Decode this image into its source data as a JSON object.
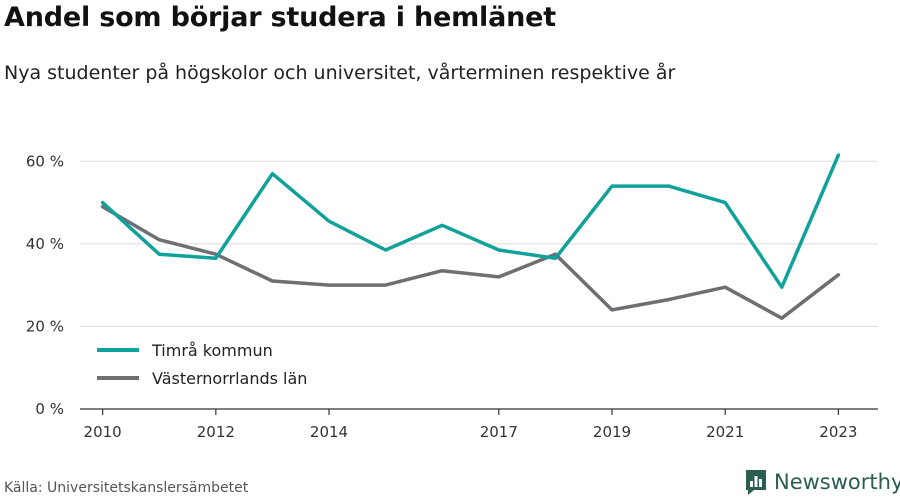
{
  "header": {
    "title": "Andel som börjar studera i hemlänet",
    "subtitle": "Nya studenter på högskolor och universitet, vårterminen respektive år"
  },
  "footer": {
    "source": "Källa: Universitetskanslersämbetet",
    "brand": "Newsworthy",
    "brand_icon": "bar-chart-logo-icon"
  },
  "colors": {
    "timra": "#0fa19a",
    "vasternorrland": "#6e6e73",
    "grid": "#dddddd",
    "axis": "#333333",
    "brand": "#2a5e4e"
  },
  "chart_data": {
    "type": "line",
    "title": "",
    "xlabel": "",
    "ylabel": "",
    "ylim": [
      0,
      70
    ],
    "xlim": [
      2009.6,
      2023.7
    ],
    "y_ticks": [
      0,
      20,
      40,
      60
    ],
    "y_tick_labels": [
      "0 %",
      "20 %",
      "40 %",
      "60 %"
    ],
    "x_ticks": [
      2010,
      2012,
      2014,
      2017,
      2019,
      2021,
      2023
    ],
    "x_tick_labels": [
      "2010",
      "2012",
      "2014",
      "2017",
      "2019",
      "2021",
      "2023"
    ],
    "grid": true,
    "legend_position": "bottom-left",
    "x": [
      2010,
      2011,
      2012,
      2013,
      2014,
      2015,
      2016,
      2017,
      2018,
      2019,
      2020,
      2021,
      2022,
      2023
    ],
    "series": [
      {
        "name": "Timrå kommun",
        "color": "#0fa19a",
        "values": [
          50,
          37.5,
          36.5,
          57,
          45.5,
          38.5,
          44.5,
          38.5,
          36.5,
          54,
          54,
          50,
          29.5,
          61.5
        ]
      },
      {
        "name": "Västernorrlands län",
        "color": "#6e6e73",
        "values": [
          49,
          41,
          37.5,
          31,
          30,
          30,
          33.5,
          32,
          37.5,
          24,
          26.5,
          29.5,
          22,
          32.5
        ]
      }
    ]
  }
}
